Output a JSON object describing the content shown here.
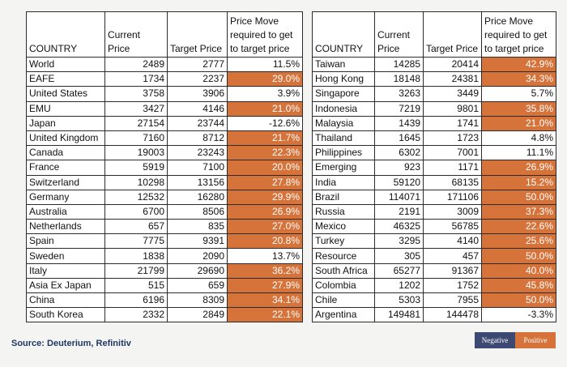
{
  "colors": {
    "positive": "#d5733a",
    "negative": "#3c4a73"
  },
  "left_table": {
    "headers": [
      "COUNTRY",
      "Current Price",
      "Target Price",
      "Price Move required to get to target price"
    ],
    "rows": [
      {
        "country": "World",
        "current": "2489",
        "target": "2777",
        "move": "11.5%",
        "positive": false
      },
      {
        "country": "EAFE",
        "current": "1734",
        "target": "2237",
        "move": "29.0%",
        "positive": true
      },
      {
        "country": "United States",
        "current": "3758",
        "target": "3906",
        "move": "3.9%",
        "positive": false
      },
      {
        "country": "EMU",
        "current": "3427",
        "target": "4146",
        "move": "21.0%",
        "positive": true
      },
      {
        "country": "Japan",
        "current": "27154",
        "target": "23744",
        "move": "-12.6%",
        "positive": false
      },
      {
        "country": "United Kingdom",
        "current": "7160",
        "target": "8712",
        "move": "21.7%",
        "positive": true
      },
      {
        "country": "Canada",
        "current": "19003",
        "target": "23243",
        "move": "22.3%",
        "positive": true
      },
      {
        "country": "France",
        "current": "5919",
        "target": "7100",
        "move": "20.0%",
        "positive": true
      },
      {
        "country": "Switzerland",
        "current": "10298",
        "target": "13156",
        "move": "27.8%",
        "positive": true
      },
      {
        "country": "Germany",
        "current": "12532",
        "target": "16280",
        "move": "29.9%",
        "positive": true
      },
      {
        "country": "Australia",
        "current": "6700",
        "target": "8506",
        "move": "26.9%",
        "positive": true
      },
      {
        "country": "Netherlands",
        "current": "657",
        "target": "835",
        "move": "27.0%",
        "positive": true
      },
      {
        "country": "Spain",
        "current": "7775",
        "target": "9391",
        "move": "20.8%",
        "positive": true
      },
      {
        "country": "Sweden",
        "current": "1838",
        "target": "2090",
        "move": "13.7%",
        "positive": false
      },
      {
        "country": "Italy",
        "current": "21799",
        "target": "29690",
        "move": "36.2%",
        "positive": true
      },
      {
        "country": "Asia Ex Japan",
        "current": "515",
        "target": "659",
        "move": "27.9%",
        "positive": true
      },
      {
        "country": "China",
        "current": "6196",
        "target": "8309",
        "move": "34.1%",
        "positive": true
      },
      {
        "country": "South Korea",
        "current": "2332",
        "target": "2849",
        "move": "22.1%",
        "positive": true
      }
    ]
  },
  "right_table": {
    "headers": [
      "COUNTRY",
      "Current Price",
      "Target Price",
      "Price Move required to get to target price"
    ],
    "rows": [
      {
        "country": "Taiwan",
        "current": "14285",
        "target": "20414",
        "move": "42.9%",
        "positive": true
      },
      {
        "country": "Hong Kong",
        "current": "18148",
        "target": "24381",
        "move": "34.3%",
        "positive": true
      },
      {
        "country": "Singapore",
        "current": "3263",
        "target": "3449",
        "move": "5.7%",
        "positive": false
      },
      {
        "country": "Indonesia",
        "current": "7219",
        "target": "9801",
        "move": "35.8%",
        "positive": true
      },
      {
        "country": "Malaysia",
        "current": "1439",
        "target": "1741",
        "move": "21.0%",
        "positive": true
      },
      {
        "country": "Thailand",
        "current": "1645",
        "target": "1723",
        "move": "4.8%",
        "positive": false
      },
      {
        "country": "Philippines",
        "current": "6302",
        "target": "7001",
        "move": "11.1%",
        "positive": false
      },
      {
        "country": "Emerging",
        "current": "923",
        "target": "1171",
        "move": "26.9%",
        "positive": true
      },
      {
        "country": "India",
        "current": "59120",
        "target": "68135",
        "move": "15.2%",
        "positive": true
      },
      {
        "country": "Brazil",
        "current": "114071",
        "target": "171106",
        "move": "50.0%",
        "positive": true
      },
      {
        "country": "Russia",
        "current": "2191",
        "target": "3009",
        "move": "37.3%",
        "positive": true
      },
      {
        "country": "Mexico",
        "current": "46325",
        "target": "56785",
        "move": "22.6%",
        "positive": true
      },
      {
        "country": "Turkey",
        "current": "3295",
        "target": "4140",
        "move": "25.6%",
        "positive": true
      },
      {
        "country": "Resource",
        "current": "305",
        "target": "457",
        "move": "50.0%",
        "positive": true
      },
      {
        "country": "South Africa",
        "current": "65277",
        "target": "91367",
        "move": "40.0%",
        "positive": true
      },
      {
        "country": "Colombia",
        "current": "1202",
        "target": "1752",
        "move": "45.8%",
        "positive": true
      },
      {
        "country": "Chile",
        "current": "5303",
        "target": "7955",
        "move": "50.0%",
        "positive": true
      },
      {
        "country": "Argentina",
        "current": "149481",
        "target": "144478",
        "move": "-3.3%",
        "positive": false
      }
    ]
  },
  "source": "Source: Deuterium, Refinitiv",
  "legend": {
    "negative": "Negative",
    "positive": "Positive"
  }
}
